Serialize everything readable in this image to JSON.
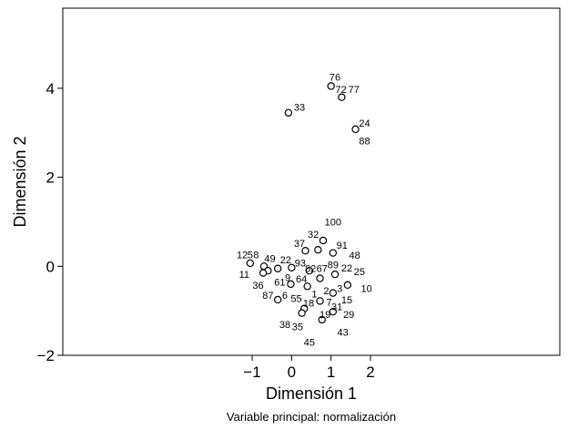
{
  "chart_data": {
    "type": "scatter",
    "xlabel": "Dimensión 1",
    "ylabel": "Dimensión 2",
    "caption": "Variable principal: normalización",
    "xlim": [
      -5.8,
      6.8
    ],
    "ylim": [
      -2.0,
      5.8
    ],
    "x_ticks": [
      {
        "value": -1,
        "label": "−1"
      },
      {
        "value": 0,
        "label": "0"
      },
      {
        "value": 1,
        "label": "1"
      },
      {
        "value": 2,
        "label": "2"
      }
    ],
    "y_ticks": [
      {
        "value": -2,
        "label": "−2"
      },
      {
        "value": 0,
        "label": "0"
      },
      {
        "value": 2,
        "label": "2"
      },
      {
        "value": 4,
        "label": "4"
      }
    ],
    "grid": false,
    "points": [
      {
        "x": 1.0,
        "y": 4.05
      },
      {
        "x": 1.27,
        "y": 3.8
      },
      {
        "x": -0.08,
        "y": 3.45
      },
      {
        "x": 1.62,
        "y": 3.08
      },
      {
        "x": 0.8,
        "y": 0.58
      },
      {
        "x": 0.35,
        "y": 0.35
      },
      {
        "x": 0.67,
        "y": 0.37
      },
      {
        "x": 1.05,
        "y": 0.3
      },
      {
        "x": -1.05,
        "y": 0.07
      },
      {
        "x": -0.7,
        "y": 0.0
      },
      {
        "x": -0.35,
        "y": -0.05
      },
      {
        "x": 0.0,
        "y": -0.03
      },
      {
        "x": -0.6,
        "y": -0.1
      },
      {
        "x": -0.72,
        "y": -0.15
      },
      {
        "x": 0.45,
        "y": -0.1
      },
      {
        "x": 1.1,
        "y": -0.18
      },
      {
        "x": 0.72,
        "y": -0.27
      },
      {
        "x": -0.02,
        "y": -0.4
      },
      {
        "x": 1.42,
        "y": -0.42
      },
      {
        "x": 0.4,
        "y": -0.45
      },
      {
        "x": 1.05,
        "y": -0.6
      },
      {
        "x": -0.35,
        "y": -0.75
      },
      {
        "x": 0.72,
        "y": -0.78
      },
      {
        "x": 0.32,
        "y": -0.95
      },
      {
        "x": 0.26,
        "y": -1.05
      },
      {
        "x": 1.05,
        "y": -1.02
      },
      {
        "x": 0.77,
        "y": -1.2
      }
    ],
    "labels": [
      {
        "text": "76",
        "x": 1.1,
        "y": 4.25
      },
      {
        "text": "72",
        "x": 1.25,
        "y": 3.98
      },
      {
        "text": "77",
        "x": 1.58,
        "y": 3.98
      },
      {
        "text": "33",
        "x": 0.2,
        "y": 3.58
      },
      {
        "text": "24",
        "x": 1.85,
        "y": 3.22
      },
      {
        "text": "88",
        "x": 1.85,
        "y": 2.82
      },
      {
        "text": "100",
        "x": 1.05,
        "y": 1.0
      },
      {
        "text": "32",
        "x": 0.55,
        "y": 0.72
      },
      {
        "text": "37",
        "x": 0.2,
        "y": 0.52
      },
      {
        "text": "91",
        "x": 1.28,
        "y": 0.48
      },
      {
        "text": "48",
        "x": 1.6,
        "y": 0.25
      },
      {
        "text": "12",
        "x": -1.25,
        "y": 0.26
      },
      {
        "text": "5",
        "x": -1.05,
        "y": 0.26
      },
      {
        "text": "8",
        "x": -0.9,
        "y": 0.26
      },
      {
        "text": "49",
        "x": -0.55,
        "y": 0.18
      },
      {
        "text": "22",
        "x": -0.15,
        "y": 0.15
      },
      {
        "text": "93",
        "x": 0.22,
        "y": 0.08
      },
      {
        "text": "82",
        "x": 0.48,
        "y": -0.04
      },
      {
        "text": "67",
        "x": 0.77,
        "y": -0.04
      },
      {
        "text": "89",
        "x": 1.05,
        "y": 0.04
      },
      {
        "text": "22",
        "x": 1.4,
        "y": -0.03
      },
      {
        "text": "25",
        "x": 1.72,
        "y": -0.12
      },
      {
        "text": "11",
        "x": -1.2,
        "y": -0.18
      },
      {
        "text": "61",
        "x": -0.3,
        "y": -0.35
      },
      {
        "text": "9",
        "x": -0.1,
        "y": -0.25
      },
      {
        "text": "64",
        "x": 0.25,
        "y": -0.28
      },
      {
        "text": "36",
        "x": -0.85,
        "y": -0.42
      },
      {
        "text": "87",
        "x": -0.6,
        "y": -0.65
      },
      {
        "text": "6",
        "x": -0.17,
        "y": -0.65
      },
      {
        "text": "55",
        "x": 0.12,
        "y": -0.72
      },
      {
        "text": "1",
        "x": 0.58,
        "y": -0.62
      },
      {
        "text": "2",
        "x": 0.88,
        "y": -0.55
      },
      {
        "text": "3",
        "x": 1.22,
        "y": -0.5
      },
      {
        "text": "10",
        "x": 1.9,
        "y": -0.5
      },
      {
        "text": "18",
        "x": 0.43,
        "y": -0.82
      },
      {
        "text": "7",
        "x": 0.95,
        "y": -0.8
      },
      {
        "text": "31",
        "x": 1.15,
        "y": -0.9
      },
      {
        "text": "15",
        "x": 1.4,
        "y": -0.75
      },
      {
        "text": "19",
        "x": 0.85,
        "y": -1.08
      },
      {
        "text": "29",
        "x": 1.45,
        "y": -1.08
      },
      {
        "text": "38",
        "x": -0.17,
        "y": -1.3
      },
      {
        "text": "35",
        "x": 0.15,
        "y": -1.35
      },
      {
        "text": "43",
        "x": 1.3,
        "y": -1.48
      },
      {
        "text": "45",
        "x": 0.45,
        "y": -1.7
      }
    ]
  }
}
